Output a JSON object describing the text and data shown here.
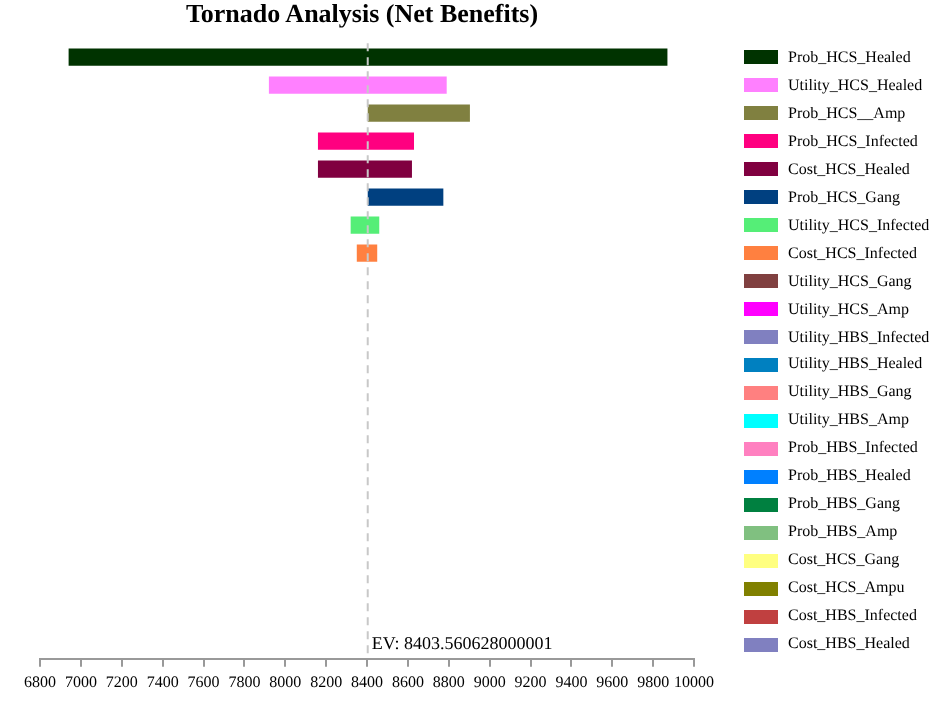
{
  "chart_data": {
    "type": "bar",
    "orientation": "horizontal",
    "title": "Tornado Analysis (Net Benefits)",
    "categories": [
      "Prob_HCS_Healed",
      "Utility_HCS_Healed",
      "Prob_HCS__Amp",
      "Prob_HCS_Infected",
      "Cost_HCS_Healed",
      "Prob_HCS_Gang",
      "Utility_HCS_Infected",
      "Cost_HCS_Infected",
      "Utility_HCS_Gang",
      "Utility_HCS_Amp",
      "Utility_HBS_Infected",
      "Utility_HBS_Healed",
      "Utility_HBS_Gang",
      "Utility_HBS_Amp",
      "Prob_HBS_Infected",
      "Prob_HBS_Healed",
      "Prob_HBS_Gang",
      "Prob_HBS_Amp",
      "Cost_HCS_Gang",
      "Cost_HCS_Ampu",
      "Cost_HBS_Infected",
      "Cost_HBS_Healed"
    ],
    "base": [
      6940,
      7920,
      8403.56,
      8160,
      8160,
      8403.56,
      8320,
      8350,
      null,
      null,
      null,
      null,
      null,
      null,
      null,
      null,
      null,
      null,
      null,
      null,
      null,
      null
    ],
    "values": [
      2930,
      870,
      500,
      470,
      460,
      370,
      140,
      100,
      null,
      null,
      null,
      null,
      null,
      null,
      null,
      null,
      null,
      null,
      null,
      null,
      null,
      null
    ],
    "colors": [
      "#003300",
      "#ff80ff",
      "#808040",
      "#ff0080",
      "#800040",
      "#004080",
      "#55ee77",
      "#ff8040",
      "#804040",
      "#ff00ff",
      "#8080c0",
      "#0080c0",
      "#ff8080",
      "#00ffff",
      "#ff80c0",
      "#0080ff",
      "#008040",
      "#80c080",
      "#ffff80",
      "#808000",
      "#c04040",
      "#8080c0"
    ],
    "xlim": [
      6800,
      10000
    ],
    "xticks": [
      6800,
      7000,
      7200,
      7400,
      7600,
      7800,
      8000,
      8200,
      8400,
      8600,
      8800,
      9000,
      9200,
      9400,
      9600,
      9800,
      10000
    ],
    "ref_lines": [
      {
        "axis": "x",
        "value": 8403.560628000001,
        "label": "EV: 8403.560628000001",
        "color": "#c8c8c8",
        "line_style": "dashed"
      }
    ],
    "grid": false,
    "legend": "right",
    "tick_labels": "x"
  }
}
